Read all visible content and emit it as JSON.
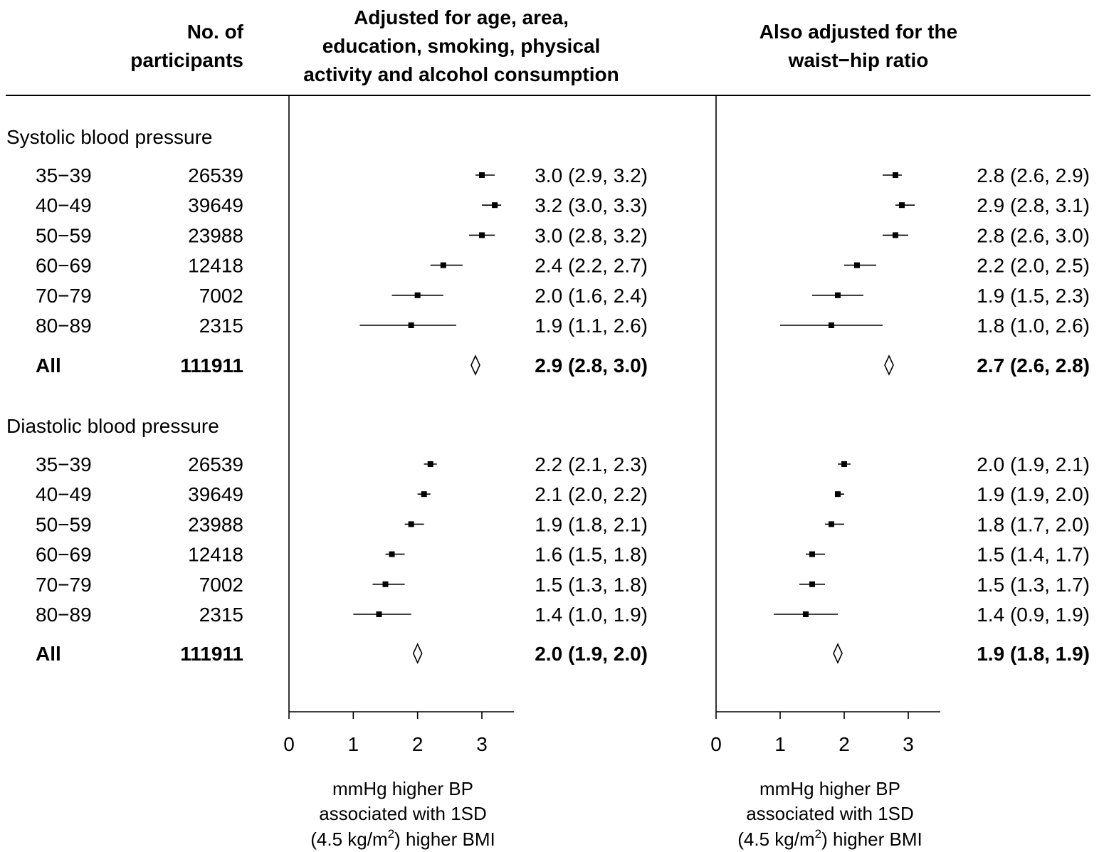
{
  "headers": {
    "participants": [
      "No. of",
      "participants"
    ],
    "panel1": [
      "Adjusted for age, area,",
      "education, smoking, physical",
      "activity and alcohol consumption"
    ],
    "panel2": [
      "Also adjusted for the",
      "waist−hip ratio"
    ]
  },
  "axis": {
    "ticks": [
      0,
      1,
      2,
      3
    ],
    "xlim": [
      0,
      3.5
    ],
    "label_line1": "mmHg higher BP",
    "label_line2": "associated with 1SD",
    "label_line3_pre": "(4.5 kg/m",
    "label_line3_sup": "2",
    "label_line3_post": ") higher BMI"
  },
  "chart_data": {
    "type": "forest",
    "panels": [
      "Adjusted for age, area, education, smoking, physical activity and alcohol consumption",
      "Also adjusted for the waist−hip ratio"
    ],
    "groups": [
      {
        "title": "Systolic blood pressure",
        "rows": [
          {
            "age": "35−39",
            "n": "26539",
            "p1": {
              "est": 3.0,
              "lo": 2.9,
              "hi": 3.2,
              "text": "3.0 (2.9, 3.2)"
            },
            "p2": {
              "est": 2.8,
              "lo": 2.6,
              "hi": 2.9,
              "text": "2.8 (2.6, 2.9)"
            }
          },
          {
            "age": "40−49",
            "n": "39649",
            "p1": {
              "est": 3.2,
              "lo": 3.0,
              "hi": 3.3,
              "text": "3.2 (3.0, 3.3)"
            },
            "p2": {
              "est": 2.9,
              "lo": 2.8,
              "hi": 3.1,
              "text": "2.9 (2.8, 3.1)"
            }
          },
          {
            "age": "50−59",
            "n": "23988",
            "p1": {
              "est": 3.0,
              "lo": 2.8,
              "hi": 3.2,
              "text": "3.0 (2.8, 3.2)"
            },
            "p2": {
              "est": 2.8,
              "lo": 2.6,
              "hi": 3.0,
              "text": "2.8 (2.6, 3.0)"
            }
          },
          {
            "age": "60−69",
            "n": "12418",
            "p1": {
              "est": 2.4,
              "lo": 2.2,
              "hi": 2.7,
              "text": "2.4 (2.2, 2.7)"
            },
            "p2": {
              "est": 2.2,
              "lo": 2.0,
              "hi": 2.5,
              "text": "2.2 (2.0, 2.5)"
            }
          },
          {
            "age": "70−79",
            "n": "7002",
            "p1": {
              "est": 2.0,
              "lo": 1.6,
              "hi": 2.4,
              "text": "2.0 (1.6, 2.4)"
            },
            "p2": {
              "est": 1.9,
              "lo": 1.5,
              "hi": 2.3,
              "text": "1.9 (1.5, 2.3)"
            }
          },
          {
            "age": "80−89",
            "n": "2315",
            "p1": {
              "est": 1.9,
              "lo": 1.1,
              "hi": 2.6,
              "text": "1.9 (1.1, 2.6)"
            },
            "p2": {
              "est": 1.8,
              "lo": 1.0,
              "hi": 2.6,
              "text": "1.8 (1.0, 2.6)"
            }
          }
        ],
        "all": {
          "label": "All",
          "n": "111911",
          "p1": {
            "est": 2.9,
            "lo": 2.8,
            "hi": 3.0,
            "text": "2.9 (2.8, 3.0)"
          },
          "p2": {
            "est": 2.7,
            "lo": 2.6,
            "hi": 2.8,
            "text": "2.7 (2.6, 2.8)"
          }
        }
      },
      {
        "title": "Diastolic blood pressure",
        "rows": [
          {
            "age": "35−39",
            "n": "26539",
            "p1": {
              "est": 2.2,
              "lo": 2.1,
              "hi": 2.3,
              "text": "2.2 (2.1, 2.3)"
            },
            "p2": {
              "est": 2.0,
              "lo": 1.9,
              "hi": 2.1,
              "text": "2.0 (1.9, 2.1)"
            }
          },
          {
            "age": "40−49",
            "n": "39649",
            "p1": {
              "est": 2.1,
              "lo": 2.0,
              "hi": 2.2,
              "text": "2.1 (2.0, 2.2)"
            },
            "p2": {
              "est": 1.9,
              "lo": 1.9,
              "hi": 2.0,
              "text": "1.9 (1.9, 2.0)"
            }
          },
          {
            "age": "50−59",
            "n": "23988",
            "p1": {
              "est": 1.9,
              "lo": 1.8,
              "hi": 2.1,
              "text": "1.9 (1.8, 2.1)"
            },
            "p2": {
              "est": 1.8,
              "lo": 1.7,
              "hi": 2.0,
              "text": "1.8 (1.7, 2.0)"
            }
          },
          {
            "age": "60−69",
            "n": "12418",
            "p1": {
              "est": 1.6,
              "lo": 1.5,
              "hi": 1.8,
              "text": "1.6 (1.5, 1.8)"
            },
            "p2": {
              "est": 1.5,
              "lo": 1.4,
              "hi": 1.7,
              "text": "1.5 (1.4, 1.7)"
            }
          },
          {
            "age": "70−79",
            "n": "7002",
            "p1": {
              "est": 1.5,
              "lo": 1.3,
              "hi": 1.8,
              "text": "1.5 (1.3, 1.8)"
            },
            "p2": {
              "est": 1.5,
              "lo": 1.3,
              "hi": 1.7,
              "text": "1.5 (1.3, 1.7)"
            }
          },
          {
            "age": "80−89",
            "n": "2315",
            "p1": {
              "est": 1.4,
              "lo": 1.0,
              "hi": 1.9,
              "text": "1.4 (1.0, 1.9)"
            },
            "p2": {
              "est": 1.4,
              "lo": 0.9,
              "hi": 1.9,
              "text": "1.4 (0.9, 1.9)"
            }
          }
        ],
        "all": {
          "label": "All",
          "n": "111911",
          "p1": {
            "est": 2.0,
            "lo": 1.9,
            "hi": 2.0,
            "text": "2.0 (1.9, 2.0)"
          },
          "p2": {
            "est": 1.9,
            "lo": 1.8,
            "hi": 1.9,
            "text": "1.9 (1.8, 1.9)"
          }
        }
      }
    ]
  }
}
